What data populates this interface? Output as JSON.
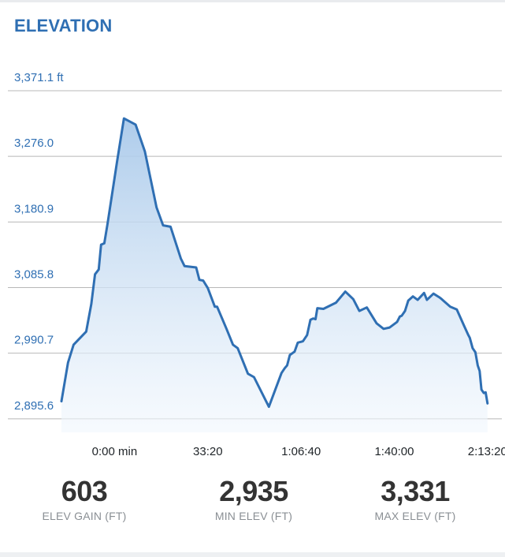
{
  "header": {
    "title": "ELEVATION"
  },
  "chart_data": {
    "type": "area",
    "title": "ELEVATION",
    "y_unit": "ft",
    "y_tick_labels": [
      "3,371.1 ft",
      "3,276.0",
      "3,180.9",
      "3,085.8",
      "2,990.7",
      "2,895.6"
    ],
    "y_ticks": [
      3371.1,
      3276.0,
      3180.9,
      3085.8,
      2990.7,
      2895.6
    ],
    "ylim": [
      2876,
      3371.1
    ],
    "x_tick_labels": [
      "0:00 min",
      "33:20",
      "1:06:40",
      "1:40:00",
      "2:13:20"
    ],
    "x_ticks_seconds": [
      0,
      2000,
      4000,
      6000,
      8000
    ],
    "xlim_seconds": [
      -1140,
      8020
    ],
    "grid": true,
    "colors": {
      "line": "#2f6fb3",
      "fill_top": "#a9c9ea",
      "fill_bottom": "#f1f7fd",
      "grid": "#b8b8b8"
    },
    "series": [
      {
        "x": [
          -1140,
          -1000,
          -880,
          -610,
          -500,
          -420,
          -340,
          -290,
          -220,
          -150,
          50,
          200,
          450,
          650,
          900,
          1040,
          1200,
          1420,
          1500,
          1750,
          1820,
          1900,
          2000,
          2150,
          2200,
          2400,
          2540,
          2640,
          2860,
          2990,
          3310,
          3580,
          3650,
          3700,
          3760,
          3860,
          3930,
          4040,
          4130,
          4200,
          4260,
          4310,
          4350,
          4480,
          4750,
          4950,
          5120,
          5250,
          5410,
          5620,
          5770,
          5900,
          6060,
          6120,
          6160,
          6230,
          6300,
          6400,
          6500,
          6640,
          6700,
          6840,
          6960,
          7000,
          7200,
          7340,
          7500,
          7580,
          7620,
          7680,
          7740,
          7790,
          7830,
          7870,
          7920,
          7960,
          8000
        ],
        "y": [
          2921,
          2977,
          3003,
          3022,
          3062,
          3105,
          3112,
          3148,
          3150,
          3179,
          3267,
          3331,
          3322,
          3283,
          3202,
          3176,
          3174,
          3128,
          3117,
          3115,
          3097,
          3096,
          3085,
          3058,
          3058,
          3026,
          3003,
          2998,
          2961,
          2956,
          2913,
          2962,
          2969,
          2973,
          2988,
          2993,
          3006,
          3008,
          3017,
          3039,
          3041,
          3040,
          3056,
          3055,
          3064,
          3080,
          3069,
          3052,
          3057,
          3034,
          3026,
          3028,
          3036,
          3044,
          3045,
          3052,
          3067,
          3073,
          3068,
          3078,
          3068,
          3077,
          3072,
          3070,
          3058,
          3054,
          3030,
          3018,
          3013,
          2998,
          2992,
          2973,
          2965,
          2938,
          2933,
          2934,
          2918
        ]
      }
    ]
  },
  "stats": [
    {
      "value": "603",
      "label": "ELEV GAIN (FT)"
    },
    {
      "value": "2,935",
      "label": "MIN ELEV (FT)"
    },
    {
      "value": "3,331",
      "label": "MAX ELEV (FT)"
    }
  ]
}
